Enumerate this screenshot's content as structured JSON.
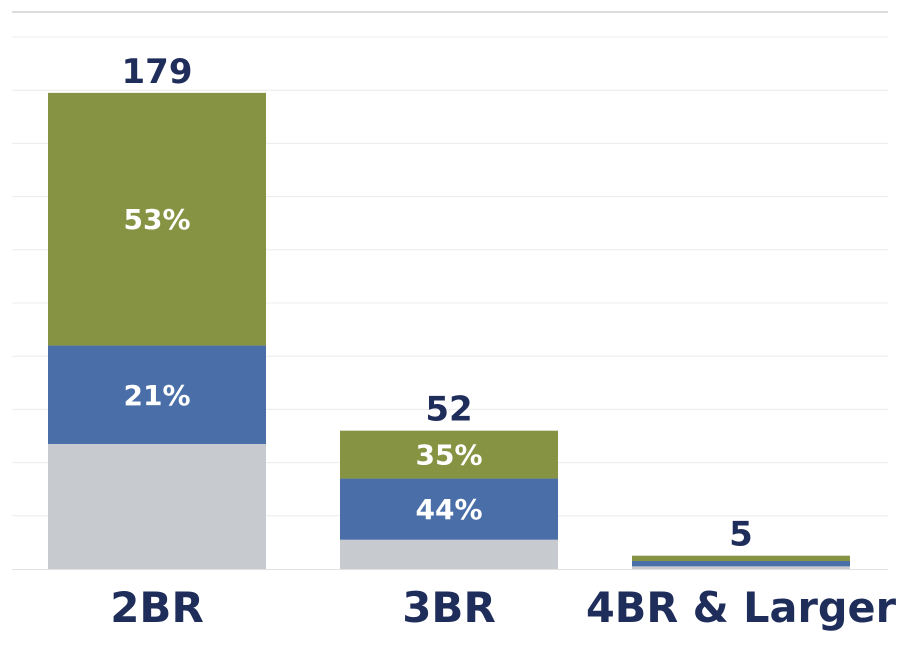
{
  "chart_data": {
    "type": "bar",
    "stacked": true,
    "categories": [
      "2BR",
      "3BR",
      "4BR & Larger"
    ],
    "totals": [
      179,
      52,
      5
    ],
    "ylim": [
      0,
      200
    ],
    "grid": true,
    "series": [
      {
        "color": "#c7cacf",
        "values": [
          47,
          11,
          1
        ]
      },
      {
        "color": "#4a6fa8",
        "values": [
          37,
          23,
          2
        ],
        "labels": [
          "21%",
          "44%",
          ""
        ]
      },
      {
        "color": "#869343",
        "values": [
          95,
          18,
          2
        ],
        "labels": [
          "53%",
          "35%",
          ""
        ]
      }
    ],
    "title": "",
    "xlabel": "",
    "ylabel": ""
  }
}
